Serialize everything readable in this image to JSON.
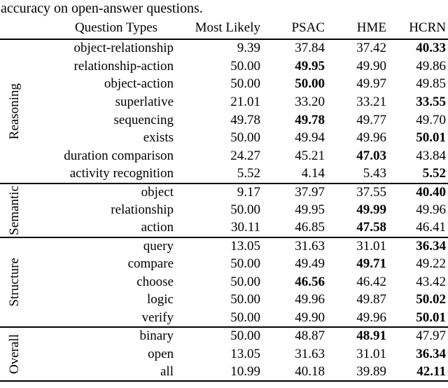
{
  "caption": "accuracy on open-answer questions.",
  "colors": {
    "text": "#000000",
    "rule": "#000000",
    "background": "#ffffff"
  },
  "table": {
    "headers": {
      "question_types": "Question Types",
      "most_likely": "Most Likely",
      "psac": "PSAC",
      "hme": "HME",
      "hcrn": "HCRN"
    },
    "groups": [
      {
        "label": "Reasoning",
        "rows": [
          {
            "type": "object-relationship",
            "values": [
              "9.39",
              "37.84",
              "37.42",
              "40.33"
            ],
            "bold": 3
          },
          {
            "type": "relationship-action",
            "values": [
              "50.00",
              "49.95",
              "49.90",
              "49.86"
            ],
            "bold": 1
          },
          {
            "type": "object-action",
            "values": [
              "50.00",
              "50.00",
              "49.97",
              "49.85"
            ],
            "bold": 1
          },
          {
            "type": "superlative",
            "values": [
              "21.01",
              "33.20",
              "33.21",
              "33.55"
            ],
            "bold": 3
          },
          {
            "type": "sequencing",
            "values": [
              "49.78",
              "49.78",
              "49.77",
              "49.70"
            ],
            "bold": 1
          },
          {
            "type": "exists",
            "values": [
              "50.00",
              "49.94",
              "49.96",
              "50.01"
            ],
            "bold": 3
          },
          {
            "type": "duration comparison",
            "values": [
              "24.27",
              "45.21",
              "47.03",
              "43.84"
            ],
            "bold": 2
          },
          {
            "type": "activity recognition",
            "values": [
              "5.52",
              "4.14",
              "5.43",
              "5.52"
            ],
            "bold": 3
          }
        ]
      },
      {
        "label": "Semantic",
        "rows": [
          {
            "type": "object",
            "values": [
              "9.17",
              "37.97",
              "37.55",
              "40.40"
            ],
            "bold": 3
          },
          {
            "type": "relationship",
            "values": [
              "50.00",
              "49.95",
              "49.99",
              "49.96"
            ],
            "bold": 2
          },
          {
            "type": "action",
            "values": [
              "30.11",
              "46.85",
              "47.58",
              "46.41"
            ],
            "bold": 2
          }
        ]
      },
      {
        "label": "Structure",
        "rows": [
          {
            "type": "query",
            "values": [
              "13.05",
              "31.63",
              "31.01",
              "36.34"
            ],
            "bold": 3
          },
          {
            "type": "compare",
            "values": [
              "50.00",
              "49.49",
              "49.71",
              "49.22"
            ],
            "bold": 2
          },
          {
            "type": "choose",
            "values": [
              "50.00",
              "46.56",
              "46.42",
              "43.42"
            ],
            "bold": 1
          },
          {
            "type": "logic",
            "values": [
              "50.00",
              "49.96",
              "49.87",
              "50.02"
            ],
            "bold": 3
          },
          {
            "type": "verify",
            "values": [
              "50.00",
              "49.90",
              "49.96",
              "50.01"
            ],
            "bold": 3
          }
        ]
      },
      {
        "label": "Overall",
        "rows": [
          {
            "type": "binary",
            "values": [
              "50.00",
              "48.87",
              "48.91",
              "47.97"
            ],
            "bold": 2
          },
          {
            "type": "open",
            "values": [
              "13.05",
              "31.63",
              "31.01",
              "36.34"
            ],
            "bold": 3
          },
          {
            "type": "all",
            "values": [
              "10.99",
              "40.18",
              "39.89",
              "42.11"
            ],
            "bold": 3
          }
        ]
      }
    ]
  }
}
